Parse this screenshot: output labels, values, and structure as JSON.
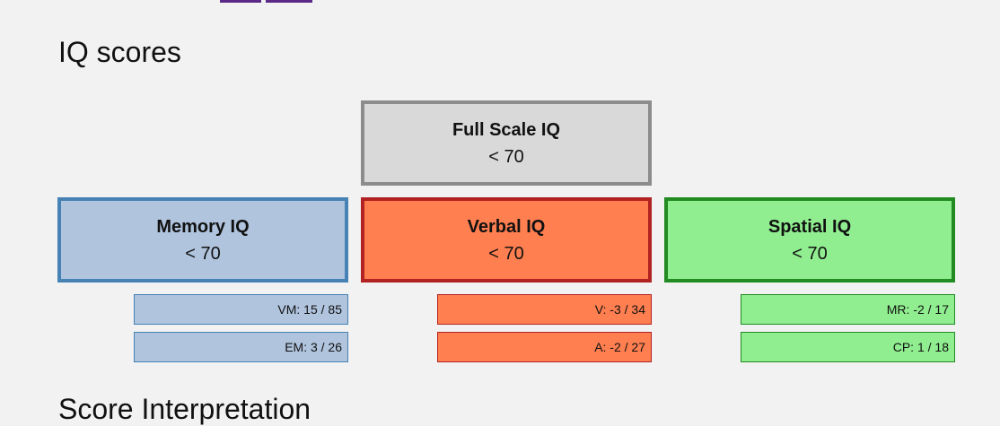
{
  "title": "IQ scores",
  "full_scale": {
    "label": "Full Scale IQ",
    "value": "< 70"
  },
  "groups": [
    {
      "label": "Memory IQ",
      "value": "< 70",
      "subscores": [
        "VM: 15 / 85",
        "EM: 3 / 26"
      ]
    },
    {
      "label": "Verbal IQ",
      "value": "< 70",
      "subscores": [
        "V: -3 / 34",
        "A: -2 / 27"
      ]
    },
    {
      "label": "Spatial IQ",
      "value": "< 70",
      "subscores": [
        "MR: -2 / 17",
        "CP: 1 / 18"
      ]
    }
  ],
  "next_heading": "Score Interpretation"
}
